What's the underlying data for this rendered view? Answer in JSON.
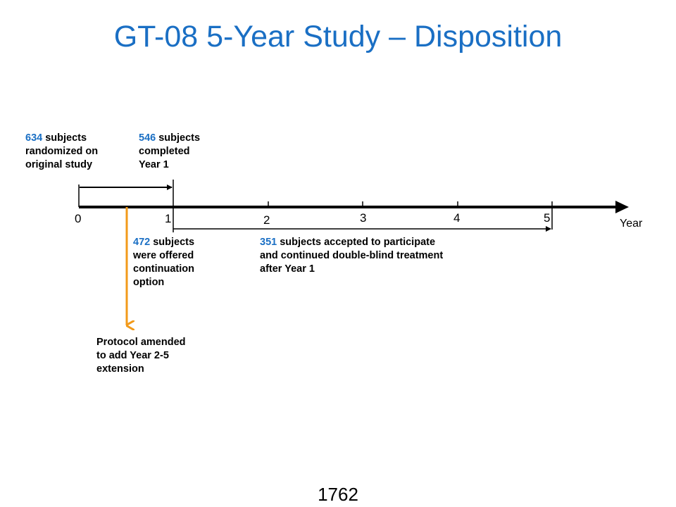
{
  "title": "GT-08 5-Year Study – Disposition",
  "timeline": {
    "axis_name": "Year",
    "ticks": [
      "0",
      "1",
      "2",
      "3",
      "4",
      "5"
    ]
  },
  "notes": {
    "randomized": {
      "number": "634",
      "line1_rest": " subjects",
      "line2": "randomized on",
      "line3": "original study"
    },
    "completed": {
      "number": "546",
      "line1_rest": " subjects",
      "line2": "completed",
      "line3": "Year 1"
    },
    "offered": {
      "number": "472",
      "line1_rest": " subjects",
      "line2": "were offered",
      "line3": "continuation",
      "line4": "option"
    },
    "accepted": {
      "number": "351",
      "line1_rest": " subjects accepted to participate",
      "line2": "and continued double-blind treatment",
      "line3": "after Year 1"
    },
    "protocol": {
      "line1": "Protocol amended",
      "line2": "to add Year 2-5",
      "line3": "extension"
    }
  },
  "colors": {
    "accent_blue": "#1a6fc4",
    "amendment_orange": "#f29a1a",
    "axis": "#000000"
  },
  "page_number": "1762"
}
